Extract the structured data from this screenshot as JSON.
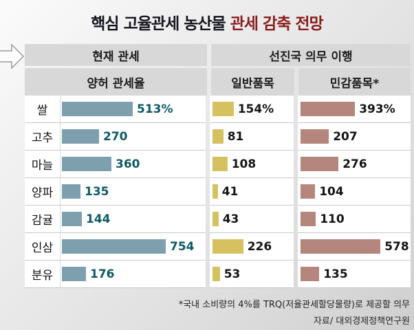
{
  "title": {
    "main": "핵심 고율관세 농산물",
    "accent": "관세 감축 전망"
  },
  "header": {
    "current_tariff": "현재 관세",
    "developed_obligation": "선진국 의무 이행",
    "concession_rate": "양허 관세율",
    "general_items": "일반품목",
    "sensitive_items": "민감품목*"
  },
  "footnote": "*국내 소비량의 4%를 TRQ(저율관세할당물량)로 제공할 의무",
  "source": "자료/ 대외경제정책연구원",
  "colors": {
    "title_main": "#15151f",
    "title_accent": "#8a1c1c",
    "header_bg": "#d8d8d8",
    "bar_concession": "#7d9fae",
    "bar_general": "#d6c161",
    "bar_sensitive": "#b5867d",
    "value_concession_text": "#0d5a66",
    "value_default_text": "#141414"
  },
  "chart_data": {
    "type": "bar",
    "title": "핵심 고율관세 농산물 관세 감축 전망",
    "categories": [
      "쌀",
      "고추",
      "마늘",
      "양파",
      "감귤",
      "인삼",
      "분유"
    ],
    "series": [
      {
        "name": "양허 관세율",
        "values": [
          513,
          270,
          360,
          135,
          144,
          754,
          176
        ],
        "labels": [
          "513%",
          "270",
          "360",
          "135",
          "144",
          "754",
          "176"
        ],
        "color": "#7d9fae",
        "label_color": "#0d5a66"
      },
      {
        "name": "일반품목",
        "values": [
          154,
          81,
          108,
          41,
          43,
          226,
          53
        ],
        "labels": [
          "154%",
          "81",
          "108",
          "41",
          "43",
          "226",
          "53"
        ],
        "color": "#d6c161",
        "label_color": "#141414"
      },
      {
        "name": "민감품목",
        "values": [
          393,
          207,
          276,
          104,
          110,
          578,
          135
        ],
        "labels": [
          "393%",
          "207",
          "276",
          "104",
          "110",
          "578",
          "135"
        ],
        "color": "#b5867d",
        "label_color": "#141414"
      }
    ],
    "unit": "percent",
    "grid": false,
    "legend_position": "none"
  }
}
